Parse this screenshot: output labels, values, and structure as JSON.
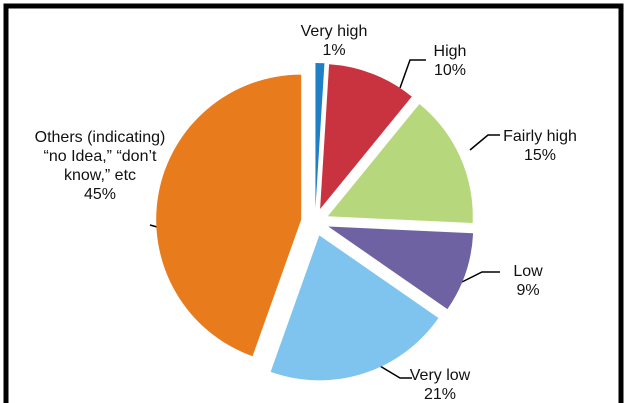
{
  "chart_data": {
    "type": "pie",
    "categories": [
      "Very high",
      "High",
      "Fairly high",
      "Low",
      "Very low",
      "Others (indicating) “no Idea,” “don’t know,” etc"
    ],
    "values": [
      1,
      10,
      15,
      9,
      21,
      45
    ],
    "value_labels": [
      "1%",
      "10%",
      "15%",
      "9%",
      "21%",
      "45%"
    ],
    "colors": [
      "#1f80c6",
      "#c9323f",
      "#b7d77c",
      "#6f62a3",
      "#7ec4ee",
      "#e87b1c"
    ]
  }
}
